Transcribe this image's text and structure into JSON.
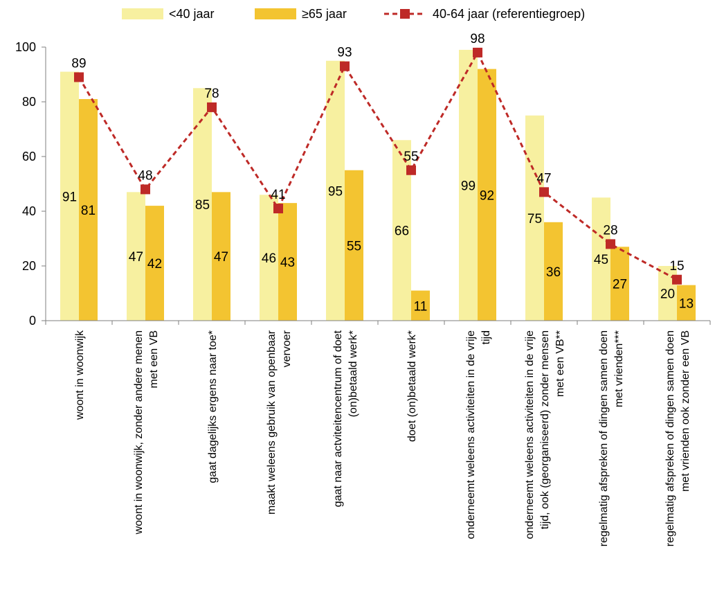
{
  "chart_data": {
    "type": "bar",
    "categories": [
      [
        "woont in woonwijk"
      ],
      [
        "woont in woonwijk, zonder andere menen",
        "met een VB"
      ],
      [
        "gaat dagelijks ergens naar toe*"
      ],
      [
        "maakt weleens gebruik van openbaar",
        "vervoer"
      ],
      [
        "gaat naar actviteitencentrum of doet",
        "(on)betaald werk*"
      ],
      [
        "doet (on)betaald werk*"
      ],
      [
        "onderneemt weleens activiteiten in de vrije",
        "tijd"
      ],
      [
        "onderneemt weleens activiteiten in de vrije",
        "tijd, ook (georganiseerd) zonder mensen",
        "met een VB**"
      ],
      [
        "regelmatig afspreken of dingen samen doen",
        "met vrienden***"
      ],
      [
        "regelmatig afspreken of dingen samen doen",
        "met vrienden ook zonder een VB"
      ]
    ],
    "series": [
      {
        "name": "<40 jaar",
        "type": "bar",
        "color": "#f7f0a0",
        "values": [
          91,
          47,
          85,
          46,
          95,
          66,
          99,
          75,
          45,
          20
        ]
      },
      {
        "name": "≥65 jaar",
        "type": "bar",
        "color": "#f3c431",
        "values": [
          81,
          42,
          47,
          43,
          55,
          11,
          92,
          36,
          27,
          13
        ]
      },
      {
        "name": "40-64 jaar (referentiegroep)",
        "type": "line",
        "color": "#be2a27",
        "values": [
          89,
          48,
          78,
          41,
          93,
          55,
          98,
          47,
          28,
          15
        ]
      }
    ],
    "ylim": [
      0,
      100
    ],
    "yticks": [
      0,
      20,
      40,
      60,
      80,
      100
    ],
    "grid": false,
    "legend_position": "top"
  }
}
